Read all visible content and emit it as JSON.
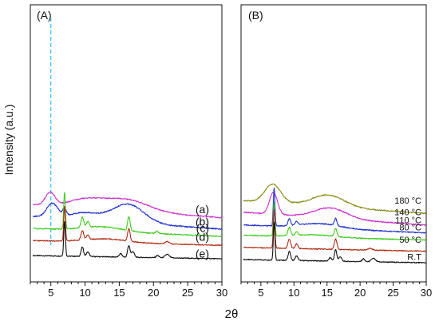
{
  "figure": {
    "ylabel": "Intensity (a.u.)",
    "xlabel": "2θ",
    "colors": {
      "a": "#cc33cc",
      "b": "#1f2fd0",
      "c": "#3ccc1c",
      "d": "#b02a12",
      "e": "#111111",
      "180": "#8c8c1a",
      "140": "#cc33cc",
      "110": "#1f2fd0",
      "80": "#3ccc1c",
      "50": "#b02a12",
      "rt": "#111111",
      "guide": "#33bbee"
    }
  },
  "chart_data": [
    {
      "type": "line",
      "panel_label": "(A)",
      "xlabel": "2θ",
      "ylabel": "Intensity (a.u.)",
      "xlim": [
        2,
        30
      ],
      "xticks": [
        "5",
        "10",
        "15",
        "20",
        "25",
        "30"
      ],
      "y_ticks_shown": false,
      "grid": false,
      "reference_line_x": 5,
      "series": [
        {
          "name": "(a)",
          "color_key": "a",
          "offset": 4.4,
          "peaks": [
            [
              4.9,
              1.1,
              0.7
            ],
            [
              10,
              0.7,
              2.5
            ],
            [
              16,
              1.0,
              3.2
            ]
          ],
          "slope": -0.04,
          "noise": 0.1
        },
        {
          "name": "(b)",
          "color_key": "b",
          "offset": 3.4,
          "peaks": [
            [
              5.2,
              1.2,
              0.8
            ],
            [
              7.0,
              0.6,
              0.25
            ],
            [
              10,
              0.6,
              2.2
            ],
            [
              16.3,
              1.6,
              2.3
            ]
          ],
          "slope": -0.04,
          "noise": 0.1
        },
        {
          "name": "(c)",
          "color_key": "c",
          "offset": 2.35,
          "peaks": [
            [
              7.0,
              3.2,
              0.12
            ],
            [
              9.6,
              0.9,
              0.2
            ],
            [
              10.4,
              0.5,
              0.2
            ],
            [
              16.4,
              1.2,
              0.18
            ],
            [
              12.5,
              0.4,
              3.0
            ],
            [
              20.5,
              0.2,
              0.2
            ]
          ],
          "slope": -0.025,
          "noise": 0.09
        },
        {
          "name": "(d)",
          "color_key": "d",
          "offset": 1.3,
          "peaks": [
            [
              7.0,
              3.0,
              0.12
            ],
            [
              9.6,
              0.8,
              0.2
            ],
            [
              10.4,
              0.4,
              0.2
            ],
            [
              16.4,
              1.1,
              0.18
            ],
            [
              13,
              0.3,
              3.0
            ],
            [
              22,
              0.2,
              0.3
            ]
          ],
          "slope": -0.015,
          "noise": 0.08
        },
        {
          "name": "(e)",
          "color_key": "e",
          "offset": 0.0,
          "peaks": [
            [
              7.0,
              3.0,
              0.12
            ],
            [
              9.6,
              0.8,
              0.18
            ],
            [
              10.4,
              0.4,
              0.2
            ],
            [
              15.2,
              0.3,
              0.2
            ],
            [
              16.4,
              1.0,
              0.18
            ],
            [
              17.0,
              0.5,
              0.2
            ],
            [
              20.6,
              0.2,
              0.2
            ],
            [
              22,
              0.3,
              0.3
            ]
          ],
          "slope": -0.01,
          "noise": 0.08
        }
      ]
    },
    {
      "type": "line",
      "panel_label": "(B)",
      "xlabel": "2θ",
      "xlim": [
        2,
        30
      ],
      "xticks": [
        "5",
        "10",
        "15",
        "20",
        "25",
        "30"
      ],
      "y_ticks_shown": false,
      "grid": false,
      "series": [
        {
          "name": "180 °C",
          "color_key": "180",
          "offset": 5.1,
          "peaks": [
            [
              6.8,
              1.6,
              1.2
            ],
            [
              15.2,
              1.0,
              2.4
            ]
          ],
          "slope": -0.04,
          "noise": 0.1
        },
        {
          "name": "140 °C",
          "color_key": "140",
          "offset": 4.1,
          "peaks": [
            [
              6.9,
              1.9,
              0.6
            ],
            [
              15.5,
              0.9,
              2.4
            ]
          ],
          "slope": -0.04,
          "noise": 0.1
        },
        {
          "name": "110 °C",
          "color_key": "110",
          "offset": 3.0,
          "peaks": [
            [
              7.0,
              3.3,
              0.12
            ],
            [
              9.3,
              0.6,
              0.2
            ],
            [
              10.4,
              0.3,
              0.2
            ],
            [
              16.3,
              0.6,
              0.2
            ],
            [
              14,
              0.4,
              3.0
            ]
          ],
          "slope": -0.025,
          "noise": 0.09
        },
        {
          "name": "80 °C",
          "color_key": "80",
          "offset": 2.1,
          "peaks": [
            [
              7.0,
              2.9,
              0.12
            ],
            [
              9.3,
              0.7,
              0.2
            ],
            [
              10.4,
              0.3,
              0.2
            ],
            [
              16.3,
              0.7,
              0.2
            ],
            [
              13,
              0.2,
              3.0
            ]
          ],
          "slope": -0.015,
          "noise": 0.08
        },
        {
          "name": "50 °C",
          "color_key": "50",
          "offset": 1.05,
          "peaks": [
            [
              7.0,
              3.4,
              0.12
            ],
            [
              9.3,
              0.8,
              0.2
            ],
            [
              10.4,
              0.4,
              0.2
            ],
            [
              16.3,
              0.9,
              0.2
            ],
            [
              21.5,
              0.15,
              0.3
            ]
          ],
          "slope": -0.012,
          "noise": 0.08
        },
        {
          "name": "R.T",
          "color_key": "rt",
          "offset": 0.0,
          "peaks": [
            [
              7.0,
              3.3,
              0.12
            ],
            [
              9.3,
              0.8,
              0.18
            ],
            [
              10.4,
              0.4,
              0.2
            ],
            [
              15.5,
              0.3,
              0.2
            ],
            [
              16.3,
              1.0,
              0.18
            ],
            [
              17.0,
              0.4,
              0.2
            ],
            [
              20.5,
              0.25,
              0.2
            ],
            [
              22,
              0.3,
              0.3
            ]
          ],
          "slope": -0.01,
          "noise": 0.08
        }
      ]
    }
  ]
}
